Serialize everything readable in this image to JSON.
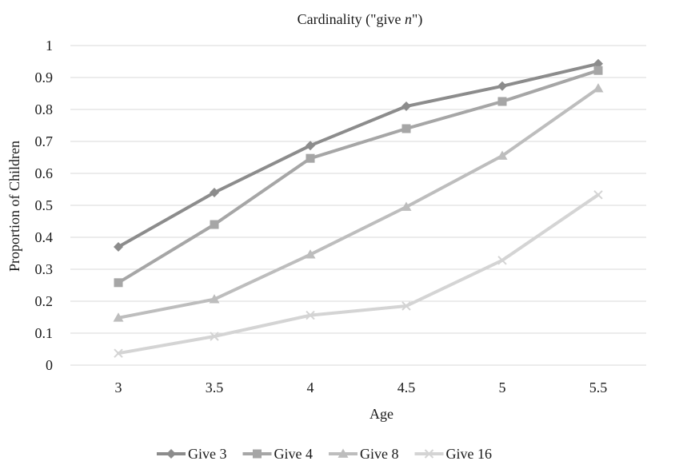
{
  "chart_data": {
    "type": "line",
    "title_prefix": "Cardinality (\"give ",
    "title_italic": "n",
    "title_suffix": "\")",
    "xlabel": "Age",
    "ylabel": "Proportion of Children",
    "x": [
      3,
      3.5,
      4,
      4.5,
      5,
      5.5
    ],
    "x_tick_labels": [
      "3",
      "3.5",
      "4",
      "4.5",
      "5",
      "5.5"
    ],
    "ylim": [
      0,
      1
    ],
    "y_ticks": [
      0,
      0.1,
      0.2,
      0.3,
      0.4,
      0.5,
      0.6,
      0.7,
      0.8,
      0.9,
      1
    ],
    "y_tick_labels": [
      "0",
      "0.1",
      "0.2",
      "0.3",
      "0.4",
      "0.5",
      "0.6",
      "0.7",
      "0.8",
      "0.9",
      "1"
    ],
    "grid": true,
    "legend_position": "bottom",
    "series": [
      {
        "name": "Give 3",
        "marker": "diamond",
        "color": "#8c8c8c",
        "values": [
          0.37,
          0.54,
          0.687,
          0.81,
          0.873,
          0.943
        ]
      },
      {
        "name": "Give 4",
        "marker": "square",
        "color": "#a6a6a6",
        "values": [
          0.258,
          0.44,
          0.647,
          0.74,
          0.825,
          0.922
        ]
      },
      {
        "name": "Give 8",
        "marker": "triangle",
        "color": "#bdbdbd",
        "values": [
          0.148,
          0.206,
          0.346,
          0.495,
          0.655,
          0.866
        ]
      },
      {
        "name": "Give 16",
        "marker": "x",
        "color": "#d4d4d4",
        "values": [
          0.037,
          0.09,
          0.156,
          0.185,
          0.328,
          0.533
        ]
      }
    ]
  }
}
